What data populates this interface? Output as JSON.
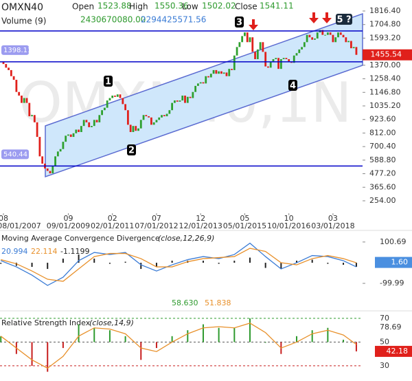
{
  "chart_data": [
    {
      "type": "candlestick",
      "title": "OMXN40",
      "watermark": "OMXN40,1N",
      "header": {
        "open_label": "Open",
        "open": "1523.88",
        "high_label": "High",
        "high": "1550.36",
        "low_label": "Low",
        "low": "1502.02",
        "close_label": "Close",
        "close": "1541.11",
        "volume_label": "Volume (9)",
        "volume": "2430670080.00",
        "volume_avg": "2294425571.56"
      },
      "annotations": [
        "1",
        "2",
        "3",
        "4",
        "5 ?"
      ],
      "close": [
        1400,
        1380,
        1350,
        1330,
        1280,
        1250,
        1150,
        1120,
        1060,
        1100,
        1060,
        950,
        960,
        900,
        780,
        620,
        560,
        520,
        500,
        480,
        540,
        620,
        660,
        680,
        740,
        790,
        800,
        780,
        810,
        840,
        820,
        870,
        920,
        900,
        860,
        870,
        920,
        900,
        960,
        1000,
        1020,
        1080,
        1100,
        1120,
        1110,
        1130,
        1100,
        1050,
        1000,
        880,
        820,
        870,
        830,
        850,
        920,
        960,
        950,
        940,
        880,
        900,
        920,
        940,
        960,
        950,
        970,
        1000,
        1060,
        1080,
        1070,
        1080,
        1120,
        1060,
        1110,
        1100,
        1150,
        1200,
        1220,
        1230,
        1220,
        1280,
        1270,
        1300,
        1330,
        1300,
        1320,
        1300,
        1310,
        1280,
        1340,
        1330,
        1450,
        1520,
        1560,
        1610,
        1640,
        1560,
        1600,
        1480,
        1420,
        1500,
        1560,
        1480,
        1360,
        1350,
        1400,
        1420,
        1430,
        1340,
        1420,
        1430,
        1420,
        1400,
        1390,
        1450,
        1470,
        1500,
        1520,
        1560,
        1620,
        1600,
        1580,
        1590,
        1640,
        1660,
        1620,
        1620,
        1640,
        1620,
        1560,
        1600,
        1640,
        1620,
        1600,
        1560,
        1570,
        1510,
        1520,
        1455.54
      ],
      "up_color": "#2ea02e",
      "down_color": "#e0201b",
      "xlim": [
        -0.32,
        139.4
      ],
      "xticks": [
        {
          "value": 1,
          "label": "08"
        },
        {
          "value": 26,
          "label": "09"
        },
        {
          "value": 43,
          "label": "02"
        },
        {
          "value": 60,
          "label": "07"
        },
        {
          "value": 77,
          "label": "12"
        },
        {
          "value": 94,
          "label": "05"
        },
        {
          "value": 111,
          "label": "10"
        },
        {
          "value": 128,
          "label": "03"
        }
      ],
      "xdates": [
        "08/01/2007",
        "09/01/2009",
        "02/01/2011",
        "07/01/2012",
        "12/01/2013",
        "05/01/2015",
        "10/01/2016",
        "03/01/2018"
      ],
      "ylim": [
        152,
        1907
      ],
      "yticks": [
        {
          "value": 1816.4,
          "label": "1816.40"
        },
        {
          "value": 1704.8,
          "label": "1704.80"
        },
        {
          "value": 1593.2,
          "label": "1593.20"
        },
        {
          "value": 1370,
          "label": "1370.00"
        },
        {
          "value": 1258.4,
          "label": "1258.40"
        },
        {
          "value": 1146.8,
          "label": "1146.80"
        },
        {
          "value": 1035.2,
          "label": "1035.20"
        },
        {
          "value": 923.6,
          "label": "923.60"
        },
        {
          "value": 812,
          "label": "812.00"
        },
        {
          "value": 700.4,
          "label": "700.40"
        },
        {
          "value": 588.8,
          "label": "588.80"
        },
        {
          "value": 477.2,
          "label": "477.20"
        },
        {
          "value": 365.6,
          "label": "365.60"
        },
        {
          "value": 254,
          "label": "254.00"
        }
      ],
      "levels": [
        1652,
        1398.11,
        540.44
      ],
      "level_color": "#0000c8",
      "price_tag_color": "#e0201b"
    },
    {
      "type": "macd",
      "title": "Moving Average Convergence Divergence",
      "params": "(close,12,26,9)",
      "readout": [
        "20.994",
        "22.114",
        "-1.1199"
      ],
      "x": [
        0,
        6,
        12,
        18,
        24,
        30,
        36,
        42,
        48,
        54,
        60,
        66,
        72,
        78,
        84,
        90,
        96,
        102,
        108,
        114,
        120,
        126,
        132,
        137
      ],
      "series": [
        {
          "name": "MACD",
          "color": "#3a7bd5",
          "values": [
            10,
            -20,
            -60,
            -110,
            -70,
            10,
            50,
            40,
            50,
            -10,
            -40,
            -10,
            15,
            30,
            20,
            40,
            95,
            30,
            -30,
            0,
            35,
            30,
            10,
            -20
          ]
        },
        {
          "name": "Signal",
          "color": "#e8902a",
          "values": [
            15,
            -5,
            -40,
            -80,
            -90,
            -30,
            30,
            45,
            45,
            20,
            -20,
            -20,
            5,
            20,
            25,
            30,
            70,
            55,
            0,
            -10,
            20,
            35,
            20,
            0
          ]
        }
      ],
      "histogram": [
        -5,
        -15,
        -20,
        -30,
        20,
        40,
        20,
        -5,
        5,
        -30,
        -20,
        10,
        10,
        10,
        -5,
        10,
        25,
        -25,
        -30,
        10,
        15,
        -5,
        -10,
        -20
      ],
      "ylim": [
        -220,
        147
      ],
      "yticks": [
        {
          "value": 100.69,
          "label": "100.69"
        },
        {
          "value": -99.99,
          "label": "-99.99"
        }
      ],
      "tag": {
        "value": 1.6,
        "label": "1.60"
      },
      "tag_color": "#4a8fe0"
    },
    {
      "type": "rsi",
      "title": "Relative Strength Index",
      "params": "(close,14,9)",
      "readout": [
        "58.630",
        "51.838"
      ],
      "max_label": "78.69",
      "x": [
        0,
        6,
        12,
        18,
        24,
        30,
        36,
        42,
        48,
        54,
        60,
        66,
        72,
        78,
        84,
        90,
        96,
        102,
        108,
        114,
        120,
        126,
        132,
        137
      ],
      "series": [
        {
          "name": "RSI",
          "color": "#2e9a2e",
          "values": [
            55,
            40,
            30,
            25,
            45,
            65,
            62,
            60,
            55,
            35,
            45,
            55,
            60,
            65,
            62,
            62,
            70,
            50,
            40,
            55,
            60,
            62,
            52,
            42.18
          ]
        },
        {
          "name": "Signal",
          "color": "#e8902a",
          "values": [
            55,
            45,
            35,
            28,
            38,
            55,
            62,
            61,
            57,
            45,
            42,
            50,
            57,
            62,
            63,
            62,
            66,
            58,
            45,
            50,
            57,
            60,
            56,
            48
          ]
        }
      ],
      "ylim": [
        17.2,
        74.6
      ],
      "yticks": [
        70,
        50,
        30
      ],
      "level_colors": [
        "#2e9a2e",
        "#555555",
        "#c81e1e"
      ],
      "tag_color": "#e0201b"
    }
  ]
}
